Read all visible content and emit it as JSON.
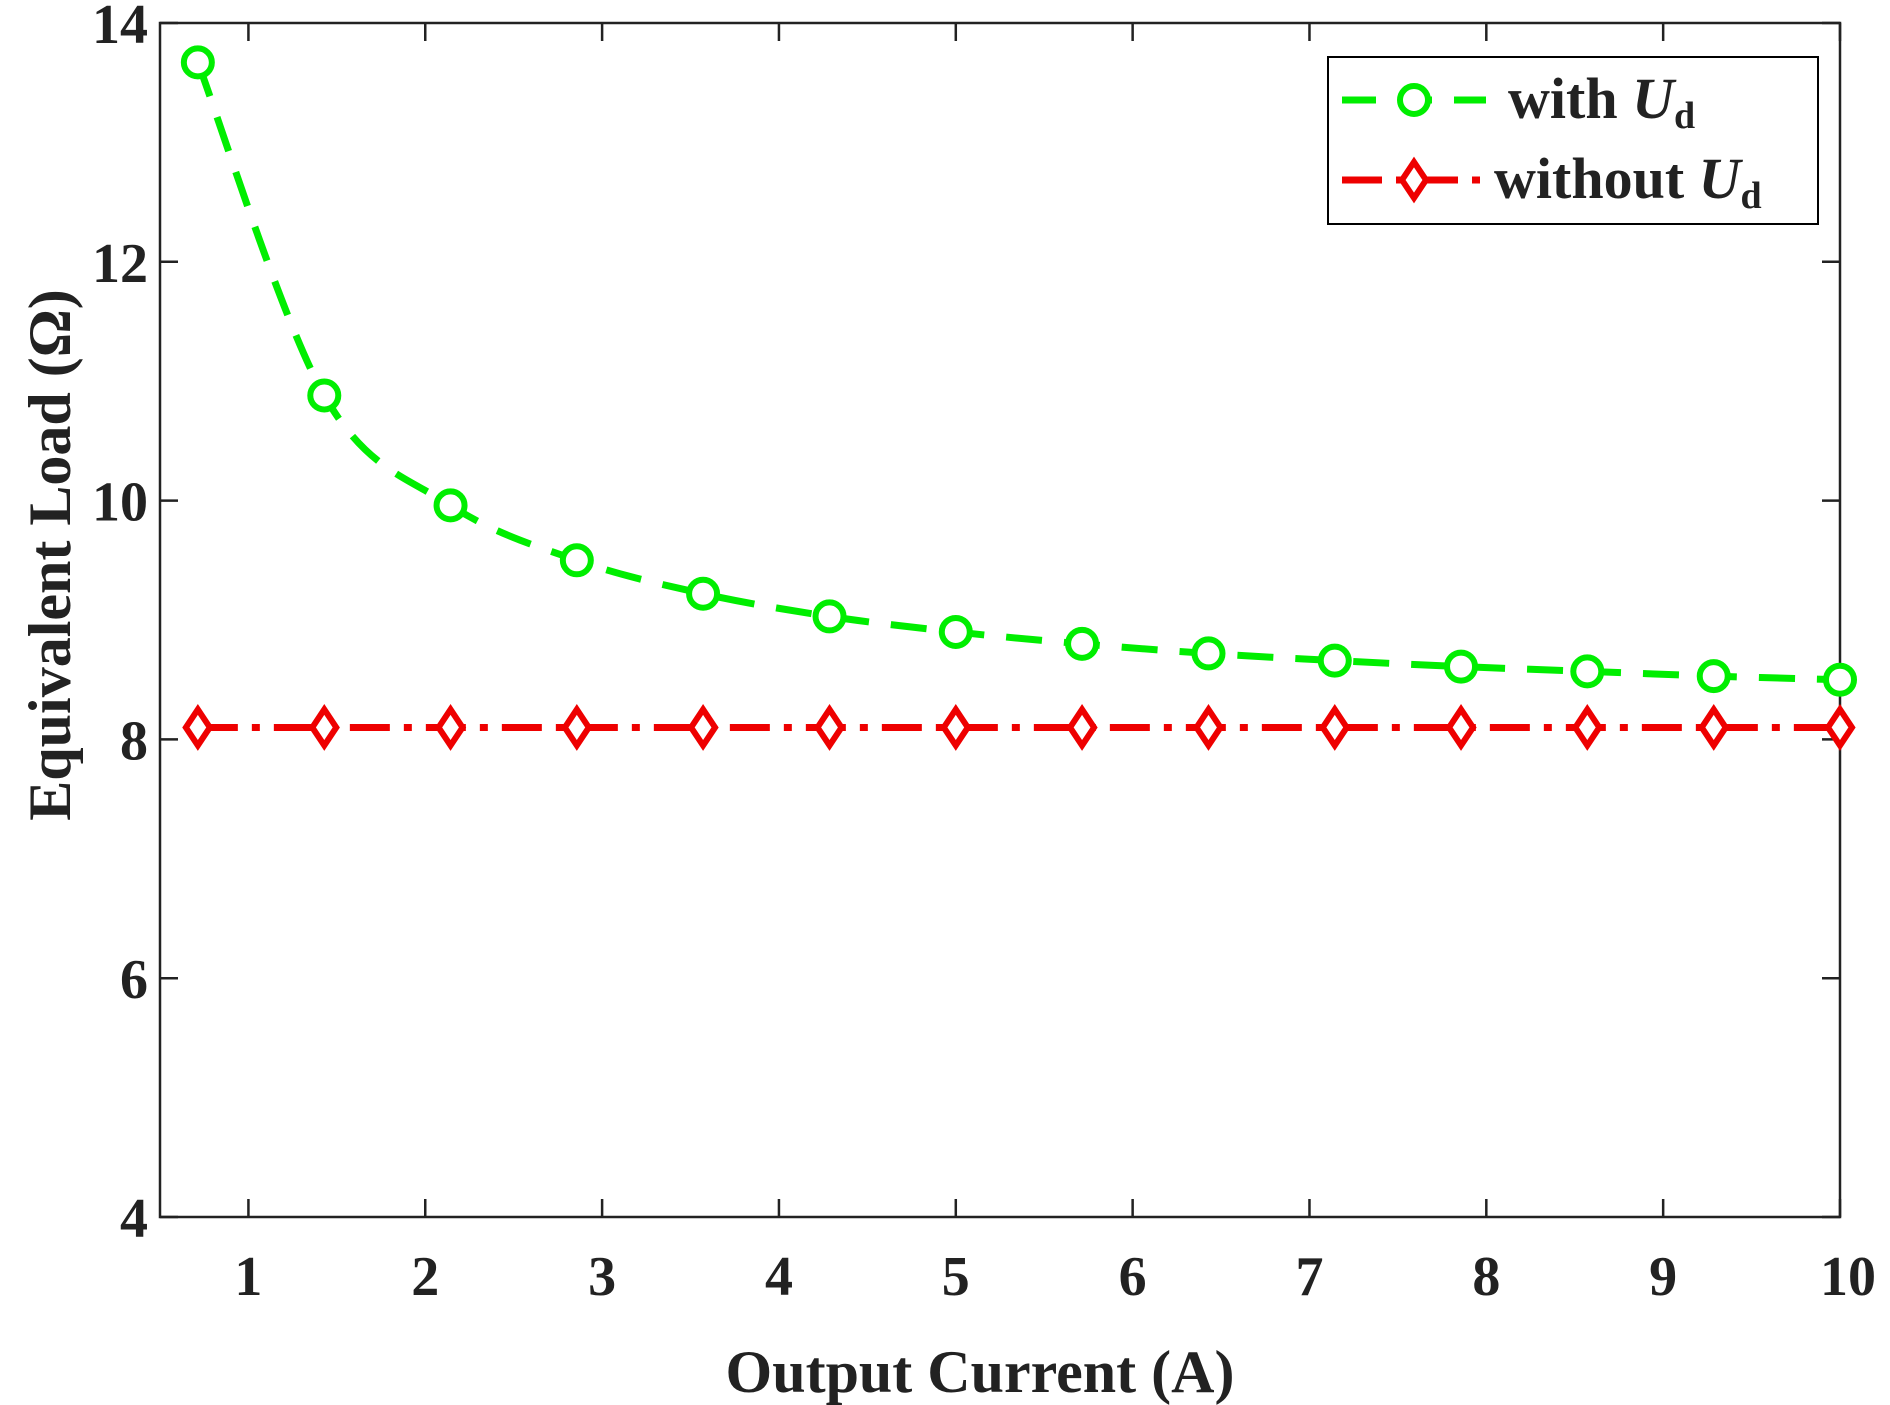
{
  "chart_data": {
    "type": "line",
    "xlabel": "Output Current (A)",
    "ylabel": "Equivalent Load (Ω)",
    "xlim": [
      0.5,
      10
    ],
    "ylim": [
      4,
      14
    ],
    "xticks": [
      "1",
      "2",
      "3",
      "4",
      "5",
      "6",
      "7",
      "8",
      "9",
      "10"
    ],
    "yticks": [
      "4",
      "6",
      "8",
      "10",
      "12",
      "14"
    ],
    "legend_position": "top-right",
    "grid": false,
    "x": [
      0.714,
      1.429,
      2.143,
      2.857,
      3.571,
      4.286,
      5.0,
      5.714,
      6.429,
      7.143,
      7.857,
      8.571,
      9.286,
      10.0
    ],
    "series": [
      {
        "name": "with U",
        "legend_base": "with ",
        "legend_symbol": "U",
        "legend_subscript": "d",
        "color": "#00ee00",
        "line_style": "dashed",
        "marker": "circle",
        "values": [
          13.67,
          10.88,
          9.96,
          9.5,
          9.22,
          9.03,
          8.9,
          8.8,
          8.72,
          8.66,
          8.61,
          8.57,
          8.53,
          8.5
        ]
      },
      {
        "name": "without U",
        "legend_base": "without ",
        "legend_symbol": "U",
        "legend_subscript": "d",
        "color": "#ee0000",
        "line_style": "dash-dot",
        "marker": "diamond",
        "values": [
          8.1,
          8.1,
          8.1,
          8.1,
          8.1,
          8.1,
          8.1,
          8.1,
          8.1,
          8.1,
          8.1,
          8.1,
          8.1,
          8.1
        ]
      }
    ]
  }
}
